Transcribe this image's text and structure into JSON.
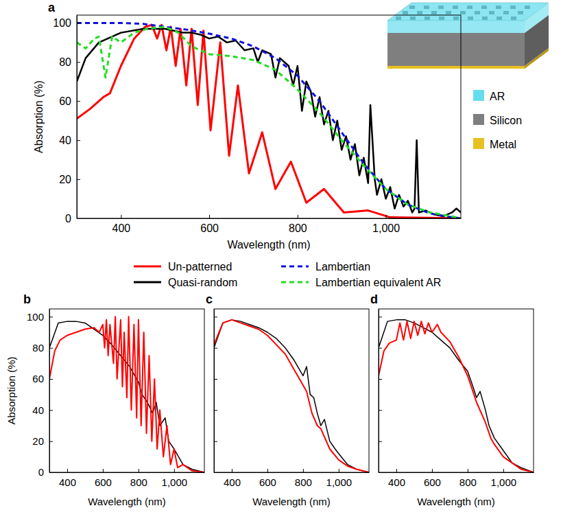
{
  "chart_data": [
    {
      "type": "line",
      "title": "a",
      "x_label": "Wavelength (nm)",
      "y_label": "Absorption (%)",
      "xlim": [
        300,
        1170
      ],
      "ylim": [
        0,
        104
      ],
      "xticks": [
        400,
        600,
        800,
        {
          "value": 1000,
          "label": "1,000"
        }
      ],
      "yticks": [
        0,
        20,
        40,
        60,
        80,
        100
      ],
      "legend": "bottom",
      "series": [
        {
          "name": "Un-patterned",
          "color": "#ff0000",
          "line_style": "solid",
          "x": [
            300,
            330,
            360,
            375,
            400,
            430,
            455,
            470,
            482,
            492,
            503,
            513,
            524,
            535,
            548,
            560,
            574,
            587,
            603,
            625,
            645,
            665,
            690,
            720,
            750,
            785,
            820,
            860,
            905,
            960,
            1010,
            1170
          ],
          "values": [
            51,
            56,
            62,
            64,
            78,
            92,
            98,
            99,
            92,
            99,
            86,
            98,
            78,
            97,
            68,
            97,
            58,
            96,
            45,
            90,
            32,
            68,
            23,
            44,
            15,
            29,
            8,
            15,
            3,
            4,
            0.5,
            0
          ]
        },
        {
          "name": "Quasi-random",
          "color": "#000000",
          "line_style": "solid",
          "x": [
            300,
            320,
            350,
            400,
            450,
            500,
            520,
            540,
            560,
            580,
            600,
            620,
            640,
            660,
            680,
            700,
            710,
            720,
            740,
            750,
            760,
            780,
            790,
            800,
            810,
            820,
            830,
            840,
            850,
            860,
            870,
            880,
            890,
            900,
            910,
            920,
            930,
            940,
            950,
            960,
            965,
            975,
            980,
            990,
            1000,
            1010,
            1020,
            1030,
            1040,
            1050,
            1060,
            1065,
            1070,
            1075,
            1090,
            1110,
            1130,
            1150,
            1160,
            1170
          ],
          "values": [
            70,
            82,
            90,
            95,
            97,
            97,
            96,
            95,
            95,
            94,
            92,
            93,
            90,
            91,
            86,
            87,
            80,
            86,
            84,
            72,
            82,
            78,
            68,
            78,
            55,
            70,
            65,
            52,
            62,
            48,
            55,
            40,
            50,
            35,
            42,
            30,
            38,
            22,
            31,
            18,
            58,
            20,
            12,
            20,
            10,
            16,
            5,
            12,
            6,
            9,
            3,
            5,
            40,
            3,
            4,
            2,
            1,
            3,
            5,
            3
          ]
        },
        {
          "name": "Lambertian",
          "color": "#1010e0",
          "line_style": "dashed",
          "x": [
            300,
            400,
            450,
            500,
            550,
            600,
            650,
            700,
            750,
            800,
            850,
            900,
            950,
            1000,
            1050,
            1100,
            1150,
            1170
          ],
          "values": [
            100,
            100,
            99.5,
            98,
            96.5,
            94.5,
            92,
            88,
            82,
            73,
            60,
            44,
            28,
            15,
            7,
            2.5,
            0.5,
            0
          ]
        },
        {
          "name": "Lambertian equivalent AR",
          "color": "#22dd22",
          "line_style": "dashed",
          "x": [
            300,
            320,
            340,
            350,
            365,
            380,
            400,
            430,
            460,
            500,
            530,
            560,
            600,
            650,
            700,
            750,
            800,
            850,
            900,
            950,
            1000,
            1050,
            1100,
            1150,
            1170
          ],
          "values": [
            90,
            87,
            92,
            93,
            72,
            93,
            90,
            95,
            97,
            98,
            95,
            88,
            84,
            83,
            81,
            76,
            66,
            54,
            40,
            27,
            15,
            7,
            3,
            1,
            0
          ]
        }
      ],
      "inset_labels": [
        {
          "label": "AR",
          "color": "#66ddee"
        },
        {
          "label": "Silicon",
          "color": "#7f7f7f"
        },
        {
          "label": "Metal",
          "color": "#e8c020"
        }
      ]
    },
    {
      "type": "line",
      "title": "b",
      "x_label": "Wavelength (nm)",
      "y_label": "Absorption (%)",
      "xlim": [
        300,
        1170
      ],
      "ylim": [
        0,
        105
      ],
      "xticks": [
        400,
        600,
        800,
        {
          "value": 1000,
          "label": "1,000"
        }
      ],
      "yticks": [
        0,
        20,
        40,
        60,
        80,
        100
      ],
      "series": [
        {
          "color": "#000000",
          "line_style": "solid",
          "x": [
            300,
            350,
            400,
            450,
            500,
            550,
            600,
            650,
            700,
            750,
            800,
            820,
            850,
            880,
            900,
            920,
            950,
            970,
            1000,
            1050,
            1100,
            1170
          ],
          "values": [
            80,
            96,
            97,
            97,
            96,
            92,
            88,
            82,
            75,
            68,
            58,
            50,
            45,
            38,
            45,
            30,
            35,
            20,
            15,
            5,
            2,
            0
          ]
        },
        {
          "color": "#ff0000",
          "line_style": "solid",
          "x": [
            300,
            330,
            360,
            400,
            450,
            500,
            550,
            580,
            600,
            610,
            620,
            630,
            640,
            660,
            670,
            680,
            700,
            710,
            720,
            735,
            745,
            760,
            775,
            790,
            800,
            815,
            830,
            845,
            860,
            875,
            890,
            905,
            920,
            940,
            960,
            980,
            1000,
            1020,
            1050,
            1100,
            1170
          ],
          "values": [
            60,
            78,
            85,
            88,
            90,
            92,
            93,
            90,
            95,
            80,
            98,
            75,
            95,
            70,
            100,
            60,
            98,
            55,
            90,
            48,
            100,
            40,
            95,
            35,
            98,
            30,
            90,
            25,
            75,
            20,
            60,
            15,
            40,
            10,
            30,
            5,
            15,
            3,
            5,
            1,
            0
          ]
        }
      ]
    },
    {
      "type": "line",
      "title": "c",
      "x_label": "Wavelength (nm)",
      "xlim": [
        300,
        1170
      ],
      "ylim": [
        0,
        105
      ],
      "xticks": [
        400,
        600,
        800,
        {
          "value": 1000,
          "label": "1,000"
        }
      ],
      "yticks": [
        0,
        20,
        40,
        60,
        80,
        100
      ],
      "tick_labels": "x",
      "series": [
        {
          "color": "#000000",
          "line_style": "solid",
          "x": [
            300,
            350,
            400,
            450,
            500,
            550,
            600,
            650,
            700,
            750,
            800,
            820,
            840,
            860,
            880,
            900,
            920,
            950,
            980,
            1000,
            1050,
            1100,
            1170
          ],
          "values": [
            80,
            96,
            98,
            97,
            95,
            93,
            90,
            86,
            80,
            72,
            62,
            68,
            50,
            48,
            38,
            30,
            34,
            20,
            15,
            12,
            5,
            2,
            0
          ]
        },
        {
          "color": "#ff0000",
          "line_style": "solid",
          "x": [
            300,
            350,
            400,
            450,
            500,
            550,
            600,
            650,
            700,
            750,
            800,
            820,
            850,
            880,
            900,
            950,
            1000,
            1050,
            1100,
            1170
          ],
          "values": [
            82,
            96,
            98,
            96,
            94,
            92,
            88,
            82,
            76,
            66,
            56,
            52,
            38,
            30,
            28,
            15,
            8,
            4,
            2,
            0
          ]
        }
      ]
    },
    {
      "type": "line",
      "title": "d",
      "x_label": "Wavelength (nm)",
      "xlim": [
        300,
        1170
      ],
      "ylim": [
        0,
        105
      ],
      "xticks": [
        400,
        600,
        800,
        {
          "value": 1000,
          "label": "1,000"
        }
      ],
      "yticks": [
        0,
        20,
        40,
        60,
        80,
        100
      ],
      "tick_labels": "x",
      "series": [
        {
          "color": "#000000",
          "line_style": "solid",
          "x": [
            300,
            350,
            400,
            450,
            500,
            550,
            600,
            650,
            700,
            750,
            800,
            830,
            850,
            870,
            900,
            920,
            950,
            1000,
            1050,
            1100,
            1170
          ],
          "values": [
            80,
            97,
            98,
            98,
            96,
            93,
            90,
            85,
            80,
            72,
            65,
            55,
            48,
            52,
            40,
            30,
            22,
            14,
            6,
            3,
            0
          ]
        },
        {
          "color": "#ff0000",
          "line_style": "solid",
          "x": [
            300,
            330,
            360,
            400,
            420,
            440,
            460,
            480,
            500,
            520,
            540,
            560,
            580,
            600,
            630,
            650,
            700,
            750,
            800,
            850,
            900,
            930,
            950,
            1000,
            1050,
            1100,
            1170
          ],
          "values": [
            62,
            78,
            83,
            85,
            96,
            85,
            97,
            86,
            97,
            88,
            97,
            89,
            96,
            90,
            95,
            90,
            84,
            74,
            62,
            45,
            32,
            22,
            18,
            10,
            6,
            2,
            0
          ]
        }
      ]
    }
  ]
}
